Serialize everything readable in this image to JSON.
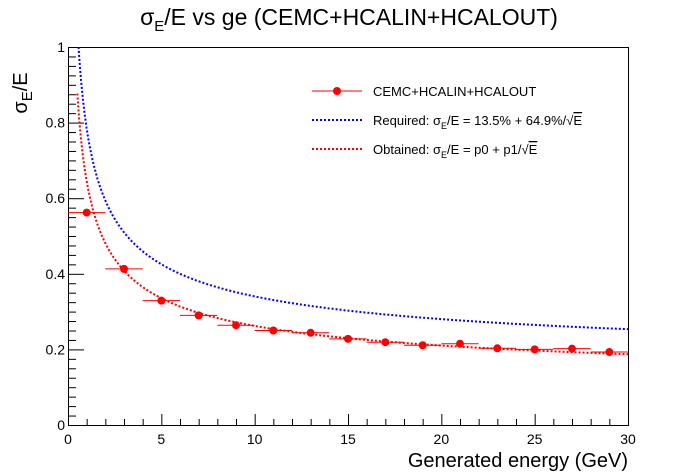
{
  "chart_data": {
    "type": "scatter",
    "title": {
      "sigma": "σ",
      "sub": "E",
      "rest": "/E vs ge (CEMC+HCALIN+HCALOUT)"
    },
    "xlabel": "Generated energy (GeV)",
    "ylabel": {
      "sigma": "σ",
      "sub": "E",
      "rest": "/E"
    },
    "xlim": [
      0,
      30
    ],
    "ylim": [
      0,
      1
    ],
    "x_ticks": [
      "0",
      "5",
      "10",
      "15",
      "20",
      "25",
      "30"
    ],
    "y_ticks": [
      "0",
      "0.2",
      "0.4",
      "0.6",
      "0.8",
      "1"
    ],
    "grid": false,
    "legend_position": "top-right",
    "series": [
      {
        "name": "CEMC+HCALIN+HCALOUT",
        "style": "markers-with-xerr",
        "color": "#ff0000",
        "points": [
          {
            "x": 1,
            "y": 0.562,
            "xerr": 1
          },
          {
            "x": 3,
            "y": 0.413,
            "xerr": 1
          },
          {
            "x": 5,
            "y": 0.329,
            "xerr": 1
          },
          {
            "x": 7,
            "y": 0.29,
            "xerr": 1
          },
          {
            "x": 9,
            "y": 0.264,
            "xerr": 1
          },
          {
            "x": 11,
            "y": 0.25,
            "xerr": 1
          },
          {
            "x": 13,
            "y": 0.244,
            "xerr": 1
          },
          {
            "x": 15,
            "y": 0.228,
            "xerr": 1
          },
          {
            "x": 17,
            "y": 0.219,
            "xerr": 1
          },
          {
            "x": 19,
            "y": 0.211,
            "xerr": 1
          },
          {
            "x": 21,
            "y": 0.215,
            "xerr": 1
          },
          {
            "x": 23,
            "y": 0.203,
            "xerr": 1
          },
          {
            "x": 25,
            "y": 0.2,
            "xerr": 1
          },
          {
            "x": 27,
            "y": 0.202,
            "xerr": 1
          },
          {
            "x": 29,
            "y": 0.193,
            "xerr": 1
          }
        ]
      },
      {
        "name": "Required",
        "style": "dotted-curve",
        "color": "#0000ff",
        "p0": 0.135,
        "p1": 0.649,
        "xrange": [
          0.5,
          30
        ]
      },
      {
        "name": "Obtained",
        "style": "dotted-curve",
        "color": "#ff0000",
        "p0": 0.085,
        "p1": 0.56,
        "xrange": [
          0.5,
          30
        ]
      }
    ],
    "legend": [
      {
        "text": "CEMC+HCALIN+HCALOUT",
        "marker": "point-line",
        "color": "#ff0000"
      },
      {
        "prefix": "Required: ",
        "sigma": "σ",
        "sub": "E",
        "rest": "/E = 13.5% + 64.9%/",
        "root": "√",
        "rootarg": "E",
        "marker": "dotted",
        "color": "#0000ff"
      },
      {
        "prefix": "Obtained:  ",
        "sigma": "σ",
        "sub": "E",
        "rest": "/E = p0 + p1/",
        "root": "√",
        "rootarg": "E",
        "marker": "dotted",
        "color": "#ff0000"
      }
    ]
  }
}
